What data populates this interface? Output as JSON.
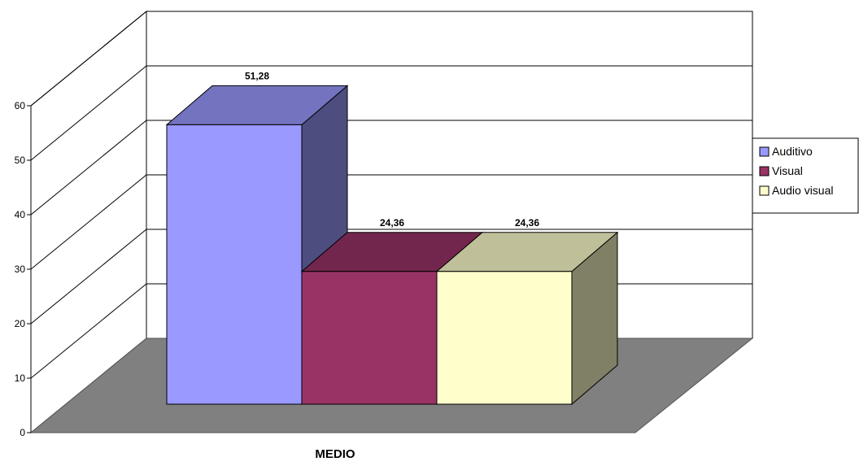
{
  "chart_data": {
    "type": "bar",
    "style": "3d",
    "categories": [
      "MEDIO"
    ],
    "xlabel": "MEDIO",
    "ylabel": "",
    "title": "",
    "ylim": [
      0,
      60
    ],
    "yticks": [
      0,
      10,
      20,
      30,
      40,
      50,
      60
    ],
    "grid": true,
    "legend_position": "right",
    "series": [
      {
        "name": "Auditivo",
        "values": [
          51.28
        ],
        "label": "51,28",
        "color": "#9999ff"
      },
      {
        "name": "Visual",
        "values": [
          24.36
        ],
        "label": "24,36",
        "color": "#993366"
      },
      {
        "name": "Audio visual",
        "values": [
          24.36
        ],
        "label": "24,36",
        "color": "#ffffcc"
      }
    ],
    "floor_color": "#808080",
    "wall_color": "#ffffff"
  }
}
